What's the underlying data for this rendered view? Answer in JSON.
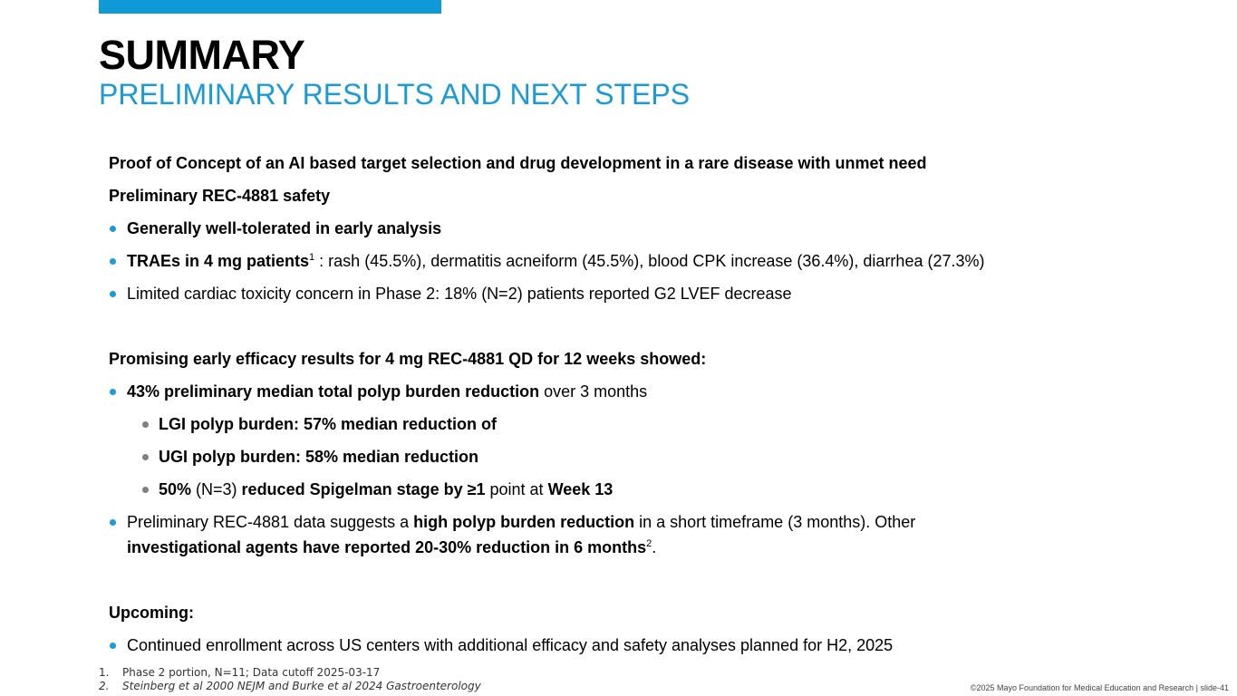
{
  "header": {
    "title": "SUMMARY",
    "subtitle": "PRELIMINARY RESULTS AND NEXT STEPS",
    "accent_color": "#0f99d6"
  },
  "sections": {
    "intro_heading": "Proof of Concept of an AI based target selection and drug development in a rare disease with unmet need",
    "safety": {
      "heading": "Preliminary REC-4881 safety",
      "bullet1": "Generally well-tolerated in early analysis",
      "bullet2_bold": "TRAEs in 4 mg patients",
      "bullet2_sup": "1",
      "bullet2_rest": " : rash (45.5%), dermatitis acneiform (45.5%), blood CPK increase (36.4%), diarrhea (27.3%)",
      "bullet3": "Limited cardiac toxicity concern in Phase 2: 18% (N=2) patients reported G2 LVEF decrease"
    },
    "efficacy": {
      "heading": "Promising early efficacy results for 4 mg REC-4881 QD for 12 weeks showed:",
      "b1_bold": "43% preliminary median total polyp burden reduction",
      "b1_rest": " over 3 months",
      "sub1": "LGI polyp burden: 57% median reduction of",
      "sub2": "UGI polyp burden: 58% median reduction",
      "sub3_bold1": "50%",
      "sub3_text1": " (N=3) ",
      "sub3_bold2": "reduced Spigelman stage by ≥1",
      "sub3_text2": " point at ",
      "sub3_bold3": "Week 13",
      "b2_text1": "Preliminary REC-4881 data suggests a ",
      "b2_bold1": "high polyp burden reduction",
      "b2_text2": " in a short timeframe (3 months). Other ",
      "b2_bold2": "investigational agents have reported 20-30% reduction in 6 months",
      "b2_sup": "2",
      "b2_end": "."
    },
    "upcoming": {
      "heading": "Upcoming:",
      "bullet1": "Continued enrollment across US centers with additional efficacy and safety analyses planned for H2, 2025"
    }
  },
  "footnotes": [
    {
      "num": "1.",
      "text": "Phase 2 portion, N=11; Data cutoff 2025-03-17"
    },
    {
      "num": "2.",
      "text": "Steinberg et al 2000 NEJM and Burke et al 2024 Gastroenterology"
    }
  ],
  "footer": {
    "copyright": "©2025 Mayo Foundation for Medical Education and Research  |  slide-41"
  }
}
